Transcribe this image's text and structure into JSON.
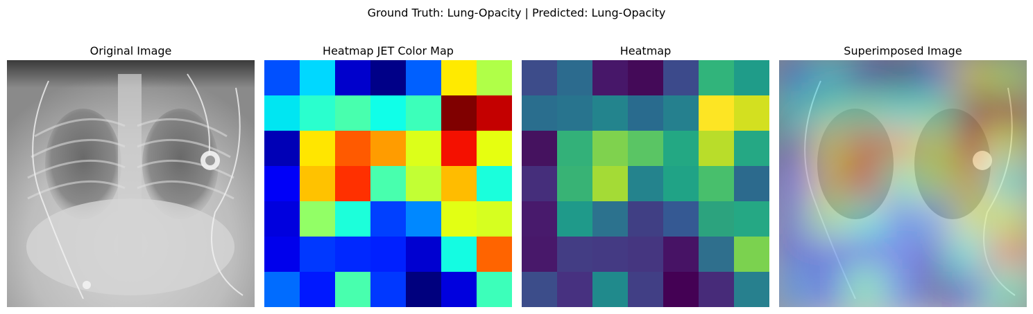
{
  "figure": {
    "suptitle": "Ground Truth: Lung-Opacity | Predicted: Lung-Opacity"
  },
  "panels": [
    {
      "title": "Original Image"
    },
    {
      "title": "Heatmap JET Color Map"
    },
    {
      "title": "Heatmap"
    },
    {
      "title": "Superimposed Image"
    }
  ],
  "colors": {
    "jet_grid": [
      [
        "#0050ff",
        "#00d8ff",
        "#0000cc",
        "#000088",
        "#0060ff",
        "#ffea00",
        "#b0ff48"
      ],
      [
        "#00e6f2",
        "#2affce",
        "#48ffae",
        "#10ffe8",
        "#3cffba",
        "#800000",
        "#c40000"
      ],
      [
        "#0000b6",
        "#ffe600",
        "#ff5a00",
        "#ff9c00",
        "#dcff1a",
        "#f41000",
        "#e6ff10"
      ],
      [
        "#0000f8",
        "#ffc200",
        "#ff3000",
        "#48ffae",
        "#c2ff34",
        "#ffbc00",
        "#1affdc"
      ],
      [
        "#0000de",
        "#92ff66",
        "#1cffda",
        "#0040ff",
        "#0088ff",
        "#e2ff14",
        "#d6ff20"
      ],
      [
        "#0000ec",
        "#0038ff",
        "#0028ff",
        "#0020ff",
        "#0000d0",
        "#14fce2",
        "#ff6400"
      ],
      [
        "#006cff",
        "#0018ff",
        "#48ffae",
        "#0038ff",
        "#00007e",
        "#0000de",
        "#3cffba"
      ]
    ],
    "viridis_grid": [
      [
        "#3d4c8a",
        "#2c6b8e",
        "#471769",
        "#440a58",
        "#3c4a8b",
        "#31b47b",
        "#1f9c89"
      ],
      [
        "#2a6e8e",
        "#28748e",
        "#23848d",
        "#296b8e",
        "#25808e",
        "#fde524",
        "#d3e020"
      ],
      [
        "#45125f",
        "#33b179",
        "#7fd24e",
        "#5ac564",
        "#23a883",
        "#b9dd2a",
        "#25a884"
      ],
      [
        "#452e7b",
        "#38b375",
        "#a4db36",
        "#24838d",
        "#20a386",
        "#48bf6c",
        "#2c6a8d"
      ],
      [
        "#481a6c",
        "#1f9a8a",
        "#2c728e",
        "#403f84",
        "#355993",
        "#2ca37e",
        "#25a884"
      ],
      [
        "#48186a",
        "#433d84",
        "#443a83",
        "#453680",
        "#471365",
        "#2f6f8d",
        "#7bd24f"
      ],
      [
        "#3c4d8a",
        "#473180",
        "#208a8c",
        "#413f85",
        "#440154",
        "#472b79",
        "#27808e"
      ]
    ]
  }
}
